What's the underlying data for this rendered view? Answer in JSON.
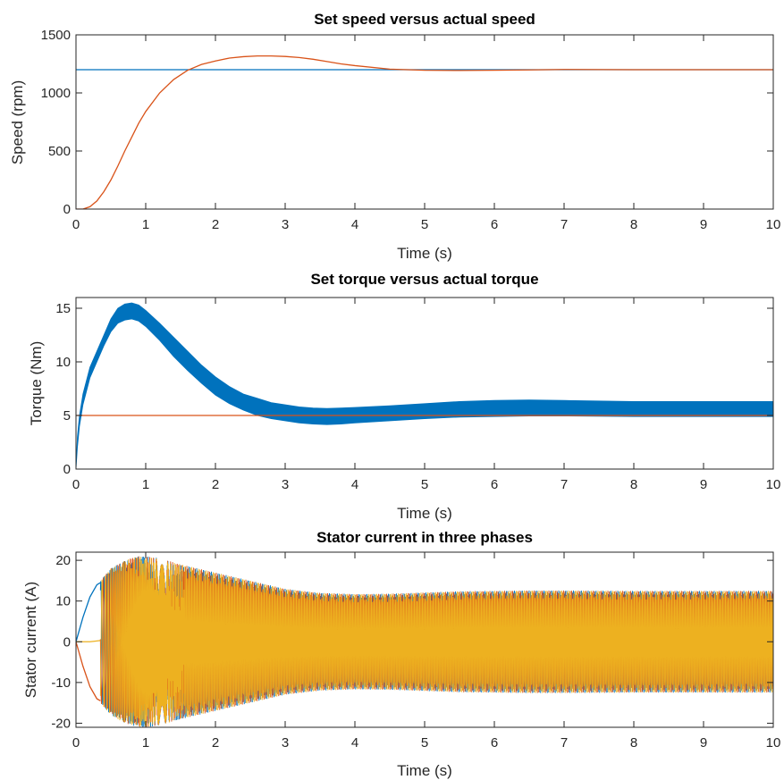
{
  "chart_data": [
    {
      "type": "line",
      "title": "Set speed versus actual speed",
      "xlabel": "Time (s)",
      "ylabel": "Speed (rpm)",
      "xlim": [
        0,
        10
      ],
      "ylim": [
        0,
        1500
      ],
      "xticks": [
        0,
        1,
        2,
        3,
        4,
        5,
        6,
        7,
        8,
        9,
        10
      ],
      "yticks": [
        0,
        500,
        1000,
        1500
      ],
      "grid": false,
      "series": [
        {
          "color": "#0072BD",
          "kind": "line",
          "x": [
            0,
            10
          ],
          "y": [
            1200,
            1200
          ]
        },
        {
          "color": "#D95319",
          "kind": "line",
          "x": [
            0,
            0.1,
            0.2,
            0.3,
            0.4,
            0.5,
            0.6,
            0.7,
            0.8,
            0.9,
            1.0,
            1.2,
            1.4,
            1.6,
            1.8,
            2.0,
            2.2,
            2.4,
            2.6,
            2.8,
            3.0,
            3.2,
            3.4,
            3.6,
            3.8,
            4.0,
            4.5,
            5.0,
            5.5,
            6.0,
            6.5,
            7.0,
            8.0,
            9.0,
            10.0
          ],
          "y": [
            0,
            0,
            20,
            70,
            150,
            250,
            370,
            500,
            620,
            740,
            840,
            1000,
            1115,
            1195,
            1245,
            1275,
            1300,
            1312,
            1318,
            1318,
            1314,
            1305,
            1290,
            1270,
            1250,
            1235,
            1205,
            1195,
            1193,
            1195,
            1198,
            1202,
            1200,
            1200,
            1200
          ]
        }
      ]
    },
    {
      "type": "line",
      "title": "Set torque versus actual torque",
      "xlabel": "Time (s)",
      "ylabel": "Torque (Nm)",
      "xlim": [
        0,
        10
      ],
      "ylim": [
        0,
        16
      ],
      "xticks": [
        0,
        1,
        2,
        3,
        4,
        5,
        6,
        7,
        8,
        9,
        10
      ],
      "yticks": [
        0,
        5,
        10,
        15
      ],
      "grid": false,
      "series": [
        {
          "color": "#0072BD",
          "kind": "band",
          "x": [
            0,
            0.02,
            0.05,
            0.1,
            0.2,
            0.3,
            0.4,
            0.5,
            0.6,
            0.7,
            0.8,
            0.9,
            1.0,
            1.2,
            1.4,
            1.6,
            1.8,
            2.0,
            2.2,
            2.4,
            2.6,
            2.8,
            3.0,
            3.2,
            3.4,
            3.6,
            3.8,
            4.0,
            4.5,
            5.0,
            5.5,
            6.0,
            6.5,
            7.0,
            8.0,
            9.0,
            10.0
          ],
          "y_upper": [
            0,
            3,
            5,
            7,
            9.5,
            11,
            12.5,
            14,
            15,
            15.4,
            15.5,
            15.3,
            14.8,
            13.6,
            12.3,
            11.0,
            9.7,
            8.6,
            7.7,
            7.0,
            6.6,
            6.2,
            6.0,
            5.8,
            5.7,
            5.65,
            5.7,
            5.75,
            5.9,
            6.1,
            6.3,
            6.4,
            6.45,
            6.4,
            6.3,
            6.3,
            6.3
          ],
          "y_lower": [
            0,
            2,
            4,
            6,
            8.5,
            10,
            11.5,
            12.8,
            13.6,
            13.9,
            14.0,
            13.8,
            13.3,
            12.0,
            10.5,
            9.2,
            8.0,
            6.9,
            6.1,
            5.5,
            5.0,
            4.7,
            4.5,
            4.3,
            4.2,
            4.15,
            4.2,
            4.3,
            4.5,
            4.7,
            4.85,
            4.9,
            4.95,
            4.95,
            4.9,
            4.9,
            4.9
          ]
        },
        {
          "color": "#D95319",
          "kind": "line",
          "x": [
            0,
            10
          ],
          "y": [
            5,
            5
          ]
        }
      ]
    },
    {
      "type": "line",
      "title": "Stator current in three phases",
      "xlabel": "Time (s)",
      "ylabel": "Stator current (A)",
      "xlim": [
        0,
        10
      ],
      "ylim": [
        -21,
        22
      ],
      "xticks": [
        0,
        1,
        2,
        3,
        4,
        5,
        6,
        7,
        8,
        9,
        10
      ],
      "yticks": [
        -20,
        -10,
        0,
        10,
        20
      ],
      "grid": false,
      "series": [
        {
          "color": "#0072BD",
          "kind": "line",
          "x": [
            0,
            0.1,
            0.2,
            0.3,
            0.35
          ],
          "y": [
            0,
            6,
            11,
            14,
            14.5
          ]
        },
        {
          "color": "#D95319",
          "kind": "line",
          "x": [
            0,
            0.1,
            0.2,
            0.3,
            0.35
          ],
          "y": [
            0,
            -6,
            -11,
            -14,
            -14.5
          ]
        },
        {
          "color": "#EDB120",
          "kind": "line",
          "x": [
            0,
            0.1,
            0.2,
            0.3,
            0.35
          ],
          "y": [
            0,
            0,
            0,
            0.2,
            0.3
          ]
        },
        {
          "color": "#EDB120",
          "kind": "oscillation",
          "x": [
            0.35,
            0.5,
            0.7,
            0.9,
            1.0,
            1.2,
            1.5,
            2.0,
            2.5,
            3.0,
            3.5,
            4.0,
            4.5,
            5.0,
            5.5,
            6.0,
            6.5,
            7.0,
            8.0,
            9.0,
            10.0
          ],
          "amplitude": [
            15,
            18,
            20,
            21,
            21,
            20.5,
            19,
            17,
            15,
            13,
            12,
            11.7,
            11.8,
            12.1,
            12.4,
            12.5,
            12.6,
            12.6,
            12.5,
            12.5,
            12.5
          ]
        }
      ]
    }
  ]
}
